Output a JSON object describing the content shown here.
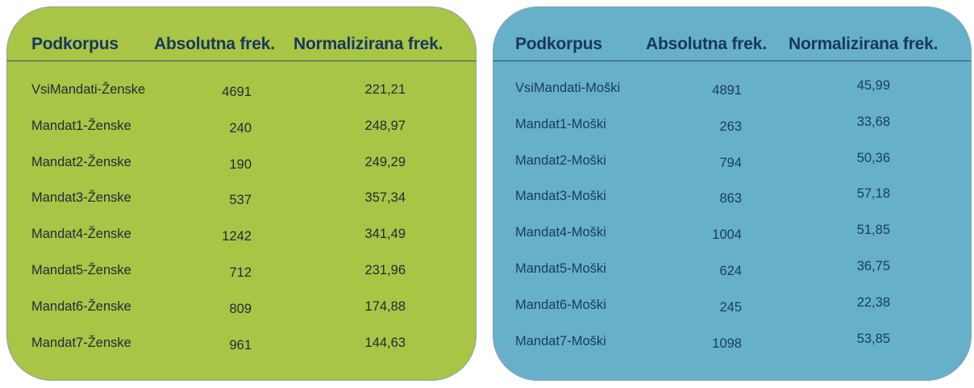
{
  "chart_data": [
    {
      "type": "table",
      "columns": [
        "Podkorpus",
        "Absolutna frek.",
        "Normalizirana frek."
      ],
      "rows": [
        [
          "VsiMandati-Ženske",
          "4691",
          "221,21"
        ],
        [
          "Mandat1-Ženske",
          "240",
          "248,97"
        ],
        [
          "Mandat2-Ženske",
          "190",
          "249,29"
        ],
        [
          "Mandat3-Ženske",
          "537",
          "357,34"
        ],
        [
          "Mandat4-Ženske",
          "1242",
          "341,49"
        ],
        [
          "Mandat5-Ženske",
          "712",
          "231,96"
        ],
        [
          "Mandat6-Ženske",
          "809",
          "174,88"
        ],
        [
          "Mandat7-Ženske",
          "961",
          "144,63"
        ]
      ],
      "background_color": "#a8c545"
    },
    {
      "type": "table",
      "columns": [
        "Podkorpus",
        "Absolutna frek.",
        "Normalizirana frek."
      ],
      "rows": [
        [
          "VsiMandati-Moški",
          "4891",
          "45,99"
        ],
        [
          "Mandat1-Moški",
          "263",
          "33,68"
        ],
        [
          "Mandat2-Moški",
          "794",
          "50,36"
        ],
        [
          "Mandat3-Moški",
          "863",
          "57,18"
        ],
        [
          "Mandat4-Moški",
          "1004",
          "51,85"
        ],
        [
          "Mandat5-Moški",
          "624",
          "36,75"
        ],
        [
          "Mandat6-Moški",
          "245",
          "22,38"
        ],
        [
          "Mandat7-Moški",
          "1098",
          "53,85"
        ]
      ],
      "background_color": "#66b0ca"
    }
  ]
}
